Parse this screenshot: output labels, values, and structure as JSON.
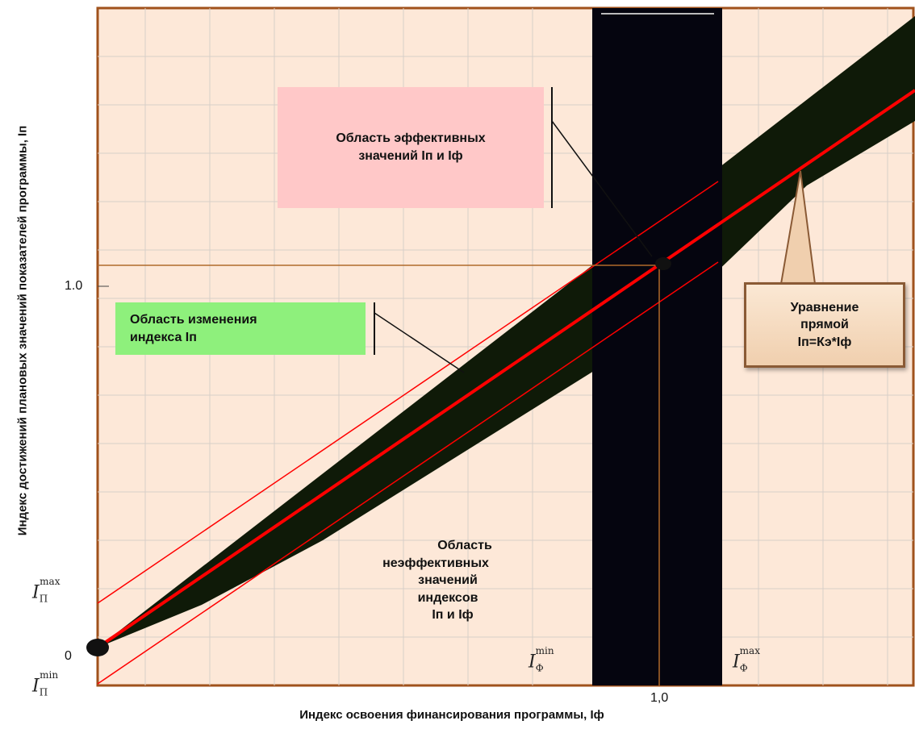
{
  "axes": {
    "y_label": "Индекс достижений плановых  значений показателей  программы, Iп",
    "x_label": "Индекс освоения  финансирования    программы, Iф",
    "y_tick_one": "1.0",
    "y_tick_zero": "0",
    "x_tick_one": "1,0"
  },
  "math_labels": {
    "ip_max_base": "I",
    "ip_max_sub": "П",
    "ip_max_sup": "max",
    "ip_min_base": "I",
    "ip_min_sub": "П",
    "ip_min_sup": "min",
    "if_min_base": "I",
    "if_min_sub": "Ф",
    "if_min_sup": "min",
    "if_max_base": "I",
    "if_max_sub": "Ф",
    "if_max_sup": "max"
  },
  "boxes": {
    "effective_line1": "Область эффективных",
    "effective_line2": "значений  Iп  и  Iф",
    "range_line1": "Область изменения",
    "range_line2": "индекса   Iп",
    "equation_line1": "Уравнение",
    "equation_line2": "прямой",
    "equation_line3": "Iп=Кэ*Iф",
    "ineff_line1": "Область",
    "ineff_line2": "неэффективных",
    "ineff_line3": "значений",
    "ineff_line4": "индексов",
    "ineff_line5": "Iп  и  Iф"
  },
  "colors": {
    "plot_bg": "#fde8d8",
    "frame": "#a0521c",
    "wedge": "#0f1a08",
    "band": "#05050f",
    "red_line": "#ff0000",
    "guide": "#b06a2a"
  }
}
